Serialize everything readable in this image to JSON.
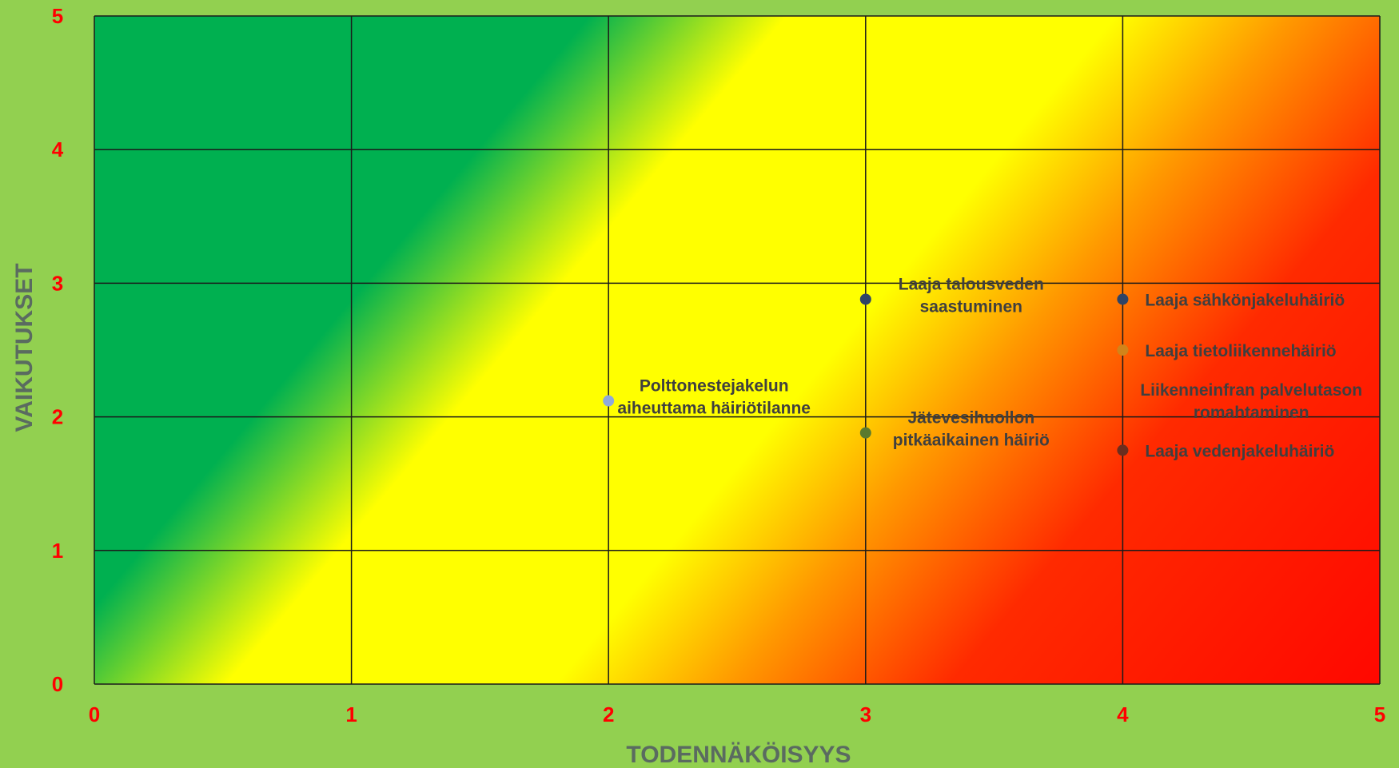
{
  "chart_data": {
    "type": "scatter",
    "title": "",
    "xlabel": "TODENNÄKÖISYYS",
    "ylabel": "VAIKUTUKSET",
    "xlim": [
      0,
      5
    ],
    "ylim": [
      0,
      5
    ],
    "x_ticks": [
      "0",
      "1",
      "2",
      "3",
      "4",
      "5"
    ],
    "y_ticks": [
      "0",
      "1",
      "2",
      "3",
      "4",
      "5"
    ],
    "grid": true,
    "legend": "none",
    "background": "diagonal gradient from green (low) through yellow to red (high)",
    "points": [
      {
        "x": 3,
        "y": 2.88,
        "color": "#2e4467",
        "label": [
          "Laaja talousveden",
          "saastuminen"
        ],
        "align": "center"
      },
      {
        "x": 4,
        "y": 2.88,
        "color": "#2e4467",
        "label": [
          "Laaja sähkönjakeluhäiriö"
        ],
        "align": "start"
      },
      {
        "x": 4,
        "y": 2.5,
        "color": "#d2841a",
        "label": [
          "Laaja tietoliikennehäiriö"
        ],
        "align": "start"
      },
      {
        "x": 2,
        "y": 2.12,
        "color": "#8ea9db",
        "label": [
          "Polttonestejakelun",
          "aiheuttama häiriötilanne"
        ],
        "align": "center"
      },
      {
        "x": 3,
        "y": 1.88,
        "color": "#5b7a2e",
        "label": [
          "Jätevesihuollon",
          "pitkäaikainen häiriö"
        ],
        "align": "center"
      },
      {
        "x": 4,
        "y": 1.75,
        "color": "#6b2e1f",
        "label": [
          "Laaja vedenjakeluhäiriö"
        ],
        "align": "start"
      },
      {
        "x": null,
        "y": null,
        "color": null,
        "label": [
          "Liikenneinfran palvelutason",
          "romahtaminen"
        ],
        "align": "center",
        "text_x": 4.5,
        "text_y": 2.16
      }
    ]
  }
}
